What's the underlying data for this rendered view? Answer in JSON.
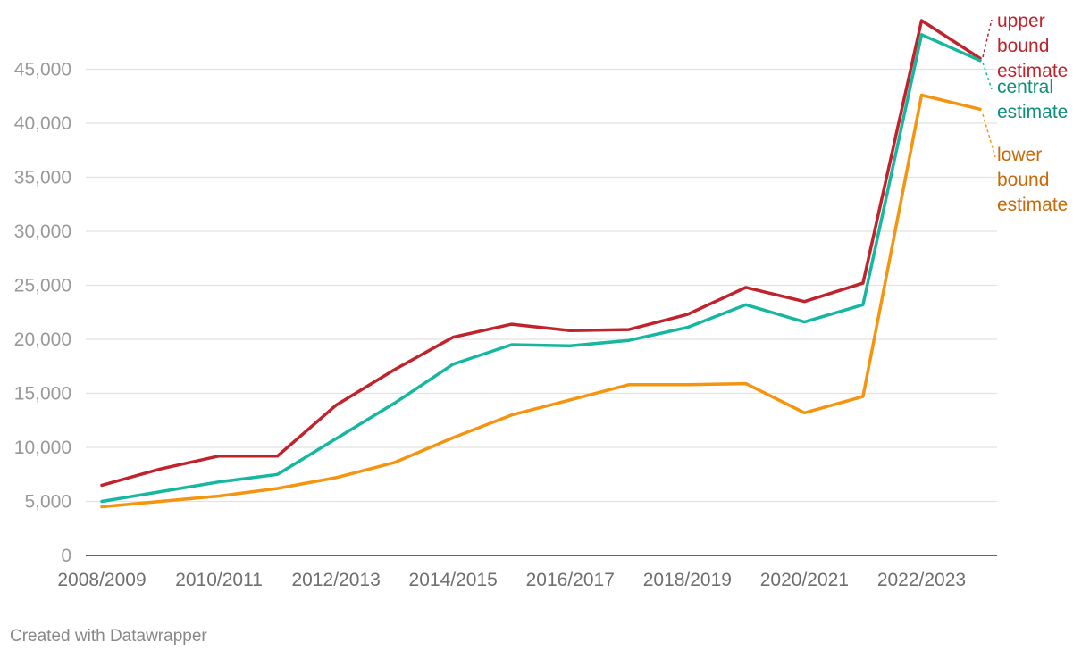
{
  "chart_data": {
    "type": "line",
    "title": "",
    "xlabel": "",
    "ylabel": "",
    "x": [
      "2008/2009",
      "2009/2010",
      "2010/2011",
      "2011/2012",
      "2012/2013",
      "2013/2014",
      "2014/2015",
      "2015/2016",
      "2016/2017",
      "2017/2018",
      "2018/2019",
      "2019/2020",
      "2020/2021",
      "2021/2022",
      "2022/2023",
      "2023/2024"
    ],
    "x_tick_labels": [
      "2008/2009",
      "2010/2011",
      "2012/2013",
      "2014/2015",
      "2016/2017",
      "2018/2019",
      "2020/2021",
      "2022/2023"
    ],
    "ylim": [
      0,
      50000
    ],
    "y_ticks": [
      0,
      5000,
      10000,
      15000,
      20000,
      25000,
      30000,
      35000,
      40000,
      45000
    ],
    "y_tick_labels": [
      "0",
      "5,000",
      "10,000",
      "15,000",
      "20,000",
      "25,000",
      "30,000",
      "35,000",
      "40,000",
      "45,000"
    ],
    "grid": true,
    "series": [
      {
        "name": "upper bound estimate",
        "label_lines": [
          "upper",
          "bound",
          "estimate"
        ],
        "color": "#c0232b",
        "label_color": "#c0232b",
        "values": [
          6500,
          8000,
          9200,
          9200,
          13900,
          17200,
          20200,
          21400,
          20800,
          20900,
          22300,
          24800,
          23500,
          25200,
          49500,
          46000
        ]
      },
      {
        "name": "central estimate",
        "label_lines": [
          "central",
          "estimate"
        ],
        "color": "#16b7a0",
        "label_color": "#0d8f79",
        "values": [
          5000,
          5900,
          6800,
          7500,
          10800,
          14100,
          17700,
          19500,
          19400,
          19900,
          21100,
          23200,
          21600,
          23200,
          48200,
          45800
        ]
      },
      {
        "name": "lower bound estimate",
        "label_lines": [
          "lower",
          "bound",
          "estimate"
        ],
        "color": "#f5940f",
        "label_color": "#c76a09",
        "values": [
          4500,
          5000,
          5500,
          6200,
          7200,
          8600,
          10900,
          13000,
          14400,
          15800,
          15800,
          15900,
          13200,
          14700,
          42600,
          41300
        ]
      }
    ]
  },
  "footer": "Created with Datawrapper"
}
